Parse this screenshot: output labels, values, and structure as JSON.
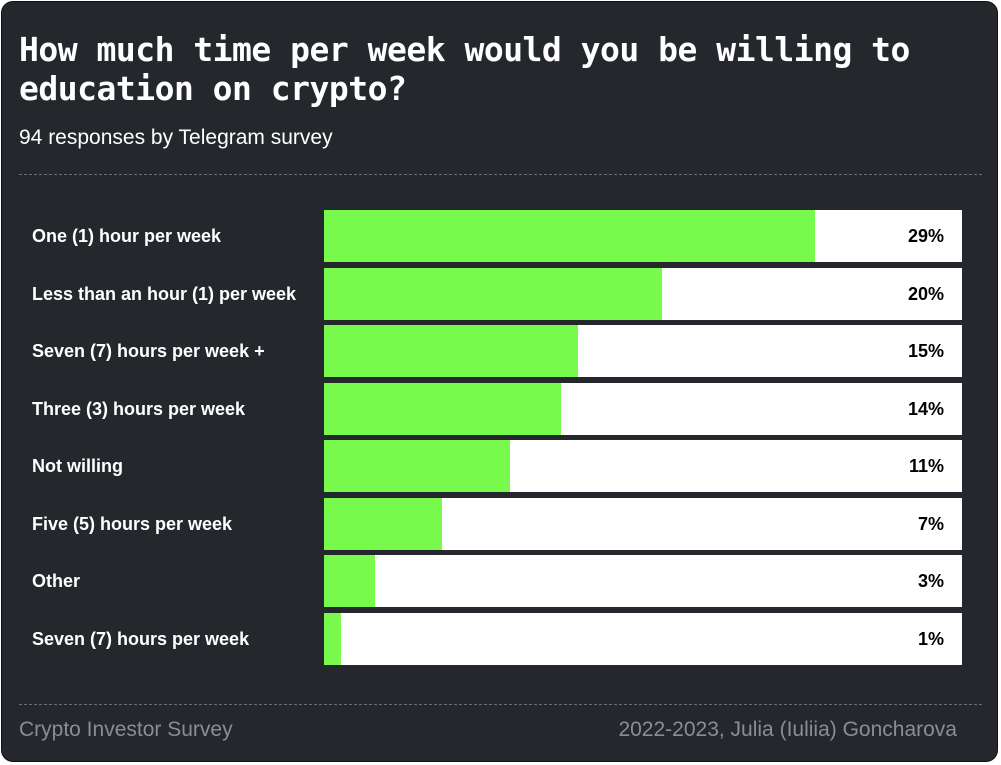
{
  "header": {
    "title": "How much time per week would you be willing to education on crypto?",
    "subtitle": "94 responses by Telegram survey"
  },
  "footer": {
    "left": "Crypto Investor Survey",
    "right": "2022-2023, Julia (Iuliia) Goncharova"
  },
  "colors": {
    "background": "#24272b",
    "bar": "#78fa4d",
    "track": "#ffffff"
  },
  "chart_data": {
    "type": "bar",
    "orientation": "horizontal",
    "title": "How much time per week would you be willing to education on crypto?",
    "subtitle": "94 responses by Telegram survey",
    "categories": [
      "One (1) hour per week",
      "Less than an hour (1) per week",
      "Seven (7) hours per week +",
      "Three (3) hours per week",
      "Not willing",
      "Five (5) hours per week",
      "Other",
      "Seven (7) hours per week"
    ],
    "values": [
      29,
      20,
      15,
      14,
      11,
      7,
      3,
      1
    ],
    "value_labels": [
      "29%",
      "20%",
      "15%",
      "14%",
      "11%",
      "7%",
      "3%",
      "1%"
    ],
    "unit": "%",
    "xlim": [
      0,
      37.7
    ],
    "grid": false,
    "legend": "none"
  }
}
